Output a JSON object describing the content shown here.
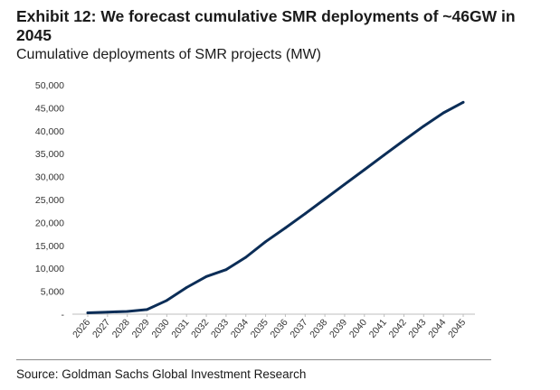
{
  "header": {
    "title": "Exhibit 12: We forecast cumulative SMR deployments of ~46GW in 2045",
    "subtitle": "Cumulative deployments of SMR projects (MW)"
  },
  "footer": {
    "source": "Source: Goldman Sachs Global Investment Research"
  },
  "colors": {
    "line": "#0b2d57",
    "axis": "#bdbdbd",
    "text": "#1a1a1a"
  },
  "chart_data": {
    "type": "line",
    "title": "Exhibit 12: We forecast cumulative SMR deployments of ~46GW in 2045",
    "subtitle": "Cumulative deployments of SMR projects (MW)",
    "xlabel": "",
    "ylabel": "",
    "grid": false,
    "legend": "none",
    "ylim": [
      0,
      50000
    ],
    "yticks": [
      0,
      5000,
      10000,
      15000,
      20000,
      25000,
      30000,
      35000,
      40000,
      45000,
      50000
    ],
    "ytick_labels": [
      "-",
      "5,000",
      "10,000",
      "15,000",
      "20,000",
      "25,000",
      "30,000",
      "35,000",
      "40,000",
      "45,000",
      "50,000"
    ],
    "categories": [
      "2026",
      "2027",
      "2028",
      "2029",
      "2030",
      "2031",
      "2032",
      "2033",
      "2034",
      "2035",
      "2036",
      "2037",
      "2038",
      "2039",
      "2040",
      "2041",
      "2042",
      "2043",
      "2044",
      "2045"
    ],
    "series": [
      {
        "values": [
          300,
          450,
          600,
          1000,
          3000,
          5800,
          8200,
          9700,
          12400,
          15800,
          18800,
          21900,
          25100,
          28300,
          31500,
          34700,
          37900,
          41000,
          43900,
          46200
        ]
      }
    ]
  }
}
